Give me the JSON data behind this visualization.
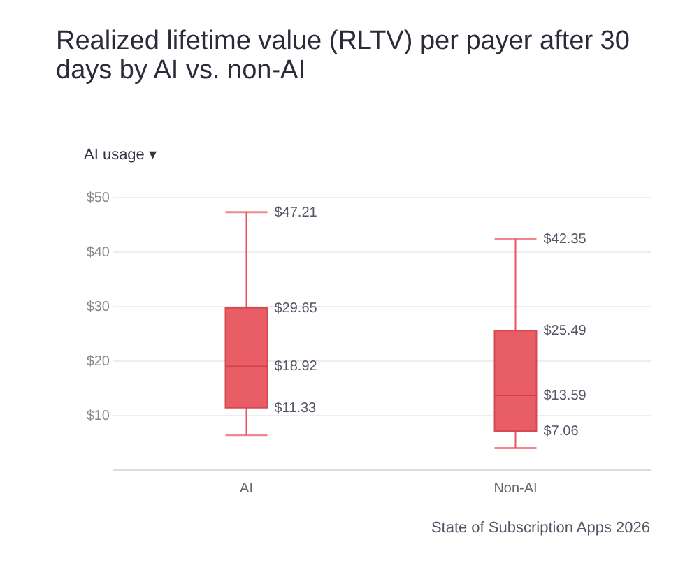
{
  "chart_data": {
    "type": "box",
    "title": "Realized lifetime value (RLTV) per payer after 30 days by AI vs. non-AI",
    "categories": [
      "AI",
      "Non-AI"
    ],
    "series": [
      {
        "color": "#e8555e",
        "boxes": [
          {
            "low": 6.3,
            "q1": 11.33,
            "median": 18.92,
            "q3": 29.65,
            "high": 47.21
          },
          {
            "low": 3.9,
            "q1": 7.06,
            "median": 13.59,
            "q3": 25.49,
            "high": 42.35
          }
        ]
      }
    ],
    "ylim": [
      0,
      50
    ],
    "yticks": [
      {
        "value": 10,
        "label": "$10"
      },
      {
        "value": 20,
        "label": "$20"
      },
      {
        "value": 30,
        "label": "$30"
      },
      {
        "value": 40,
        "label": "$40"
      },
      {
        "value": 50,
        "label": "$50"
      }
    ],
    "grid": "y",
    "annotations": [
      "AI usage ▾",
      {
        "text": "$47.21",
        "x": "AI",
        "y": 47.21
      },
      {
        "text": "$29.65",
        "x": "AI",
        "y": 29.65
      },
      {
        "text": "$18.92",
        "x": "AI",
        "y": 18.92
      },
      {
        "text": "$11.33",
        "x": "AI",
        "y": 11.33
      },
      {
        "text": "$42.35",
        "x": "Non-AI",
        "y": 42.35
      },
      {
        "text": "$25.49",
        "x": "Non-AI",
        "y": 25.49
      },
      {
        "text": "$13.59",
        "x": "Non-AI",
        "y": 13.59
      },
      {
        "text": "$7.06",
        "x": "Non-AI",
        "y": 7.06
      },
      "State of Subscription Apps 2026"
    ]
  }
}
